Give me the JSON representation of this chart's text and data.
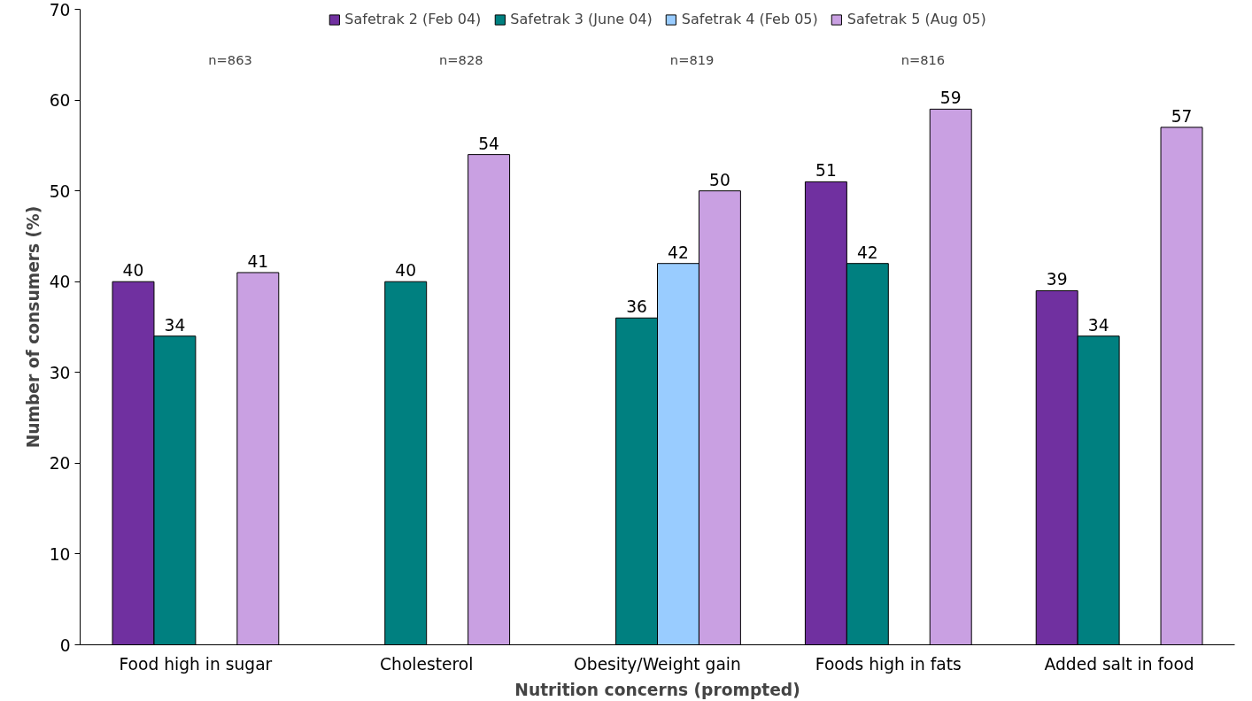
{
  "chart_data": {
    "type": "bar",
    "xlabel": "Nutrition concerns (prompted)",
    "ylabel": "Number of consumers (%)",
    "categories": [
      "Food high in sugar",
      "Cholesterol",
      "Obesity/Weight gain",
      "Foods high in fats",
      "Added salt in food"
    ],
    "series": [
      {
        "name": "Safetrak 2 (Feb 04)",
        "color": "#7030a0",
        "values": [
          40,
          null,
          null,
          51,
          39
        ]
      },
      {
        "name": "Safetrak 3 (June 04)",
        "color": "#008080",
        "values": [
          34,
          40,
          36,
          42,
          34
        ]
      },
      {
        "name": "Safetrak 4 (Feb 05)",
        "color": "#99ccff",
        "values": [
          null,
          null,
          42,
          null,
          null
        ]
      },
      {
        "name": "Safetrak 5 (Aug 05)",
        "color": "#c9a0e2",
        "values": [
          41,
          54,
          50,
          59,
          57
        ]
      }
    ],
    "annotations": [
      "n=863",
      "n=828",
      "n=819",
      "n=816"
    ],
    "ylim": [
      0,
      70
    ],
    "yticks": [
      0,
      10,
      20,
      30,
      40,
      50,
      60,
      70
    ],
    "data_labels": true,
    "grid": false,
    "legend": "top"
  }
}
